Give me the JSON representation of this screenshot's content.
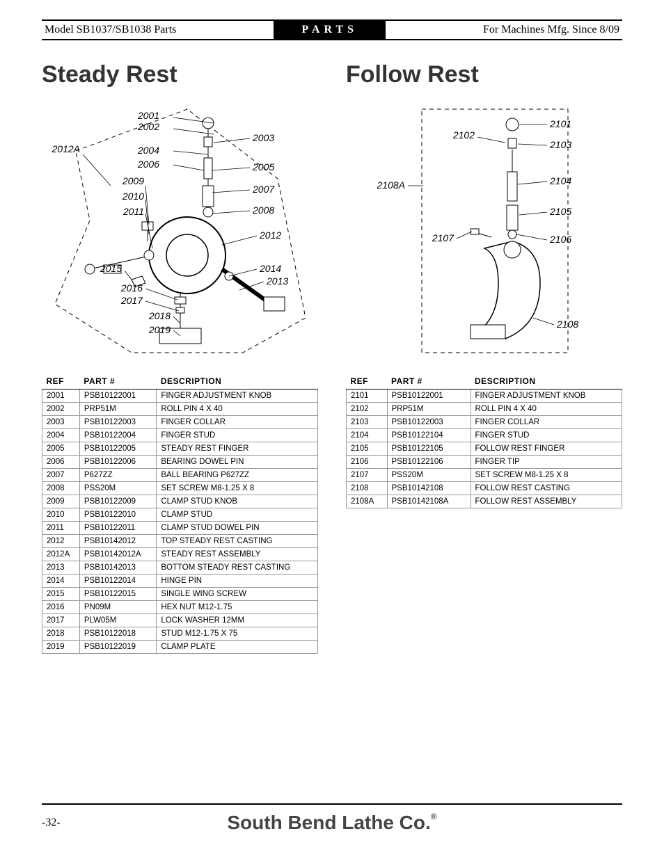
{
  "header": {
    "left": "Model SB1037/SB1038 Parts",
    "center": "PARTS",
    "right": "For Machines Mfg. Since 8/09"
  },
  "sections": {
    "steady": {
      "title": "Steady Rest"
    },
    "follow": {
      "title": "Follow Rest"
    }
  },
  "table_headers": {
    "ref": "REF",
    "part": "PART #",
    "desc": "DESCRIPTION"
  },
  "steady_callouts": [
    "2001",
    "2002",
    "2003",
    "2004",
    "2005",
    "2006",
    "2007",
    "2008",
    "2009",
    "2010",
    "2011",
    "2012",
    "2012A",
    "2013",
    "2014",
    "2015",
    "2016",
    "2017",
    "2018",
    "2019"
  ],
  "follow_callouts": [
    "2101",
    "2102",
    "2103",
    "2104",
    "2105",
    "2106",
    "2107",
    "2108",
    "2108A"
  ],
  "steady_parts": [
    {
      "ref": "2001",
      "part": "PSB10122001",
      "desc": "FINGER ADJUSTMENT KNOB"
    },
    {
      "ref": "2002",
      "part": "PRP51M",
      "desc": "ROLL PIN 4 X 40"
    },
    {
      "ref": "2003",
      "part": "PSB10122003",
      "desc": "FINGER COLLAR"
    },
    {
      "ref": "2004",
      "part": "PSB10122004",
      "desc": "FINGER STUD"
    },
    {
      "ref": "2005",
      "part": "PSB10122005",
      "desc": "STEADY REST FINGER"
    },
    {
      "ref": "2006",
      "part": "PSB10122006",
      "desc": "BEARING DOWEL PIN"
    },
    {
      "ref": "2007",
      "part": "P627ZZ",
      "desc": "BALL BEARING P627ZZ"
    },
    {
      "ref": "2008",
      "part": "PSS20M",
      "desc": "SET SCREW M8-1.25 X 8"
    },
    {
      "ref": "2009",
      "part": "PSB10122009",
      "desc": "CLAMP STUD KNOB"
    },
    {
      "ref": "2010",
      "part": "PSB10122010",
      "desc": "CLAMP STUD"
    },
    {
      "ref": "2011",
      "part": "PSB10122011",
      "desc": "CLAMP STUD DOWEL PIN"
    },
    {
      "ref": "2012",
      "part": "PSB10142012",
      "desc": "TOP STEADY REST CASTING"
    },
    {
      "ref": "2012A",
      "part": "PSB10142012A",
      "desc": "STEADY REST ASSEMBLY"
    },
    {
      "ref": "2013",
      "part": "PSB10142013",
      "desc": "BOTTOM STEADY REST CASTING"
    },
    {
      "ref": "2014",
      "part": "PSB10122014",
      "desc": "HINGE PIN"
    },
    {
      "ref": "2015",
      "part": "PSB10122015",
      "desc": "SINGLE WING SCREW"
    },
    {
      "ref": "2016",
      "part": "PN09M",
      "desc": "HEX NUT M12-1.75"
    },
    {
      "ref": "2017",
      "part": "PLW05M",
      "desc": "LOCK WASHER 12MM"
    },
    {
      "ref": "2018",
      "part": "PSB10122018",
      "desc": "STUD M12-1.75 X 75"
    },
    {
      "ref": "2019",
      "part": "PSB10122019",
      "desc": "CLAMP PLATE"
    }
  ],
  "follow_parts": [
    {
      "ref": "2101",
      "part": "PSB10122001",
      "desc": "FINGER ADJUSTMENT KNOB"
    },
    {
      "ref": "2102",
      "part": "PRP51M",
      "desc": "ROLL PIN 4 X 40"
    },
    {
      "ref": "2103",
      "part": "PSB10122003",
      "desc": "FINGER COLLAR"
    },
    {
      "ref": "2104",
      "part": "PSB10122104",
      "desc": "FINGER STUD"
    },
    {
      "ref": "2105",
      "part": "PSB10122105",
      "desc": "FOLLOW REST FINGER"
    },
    {
      "ref": "2106",
      "part": "PSB10122106",
      "desc": "FINGER TIP"
    },
    {
      "ref": "2107",
      "part": "PSS20M",
      "desc": "SET SCREW M8-1.25 X 8"
    },
    {
      "ref": "2108",
      "part": "PSB10142108",
      "desc": "FOLLOW REST CASTING"
    },
    {
      "ref": "2108A",
      "part": "PSB10142108A",
      "desc": "FOLLOW REST ASSEMBLY"
    }
  ],
  "footer": {
    "page": "-32-",
    "brand": "South Bend Lathe Co."
  },
  "colors": {
    "text": "#000000",
    "heading": "#333333",
    "border": "#000000",
    "cell_border": "#999999"
  }
}
